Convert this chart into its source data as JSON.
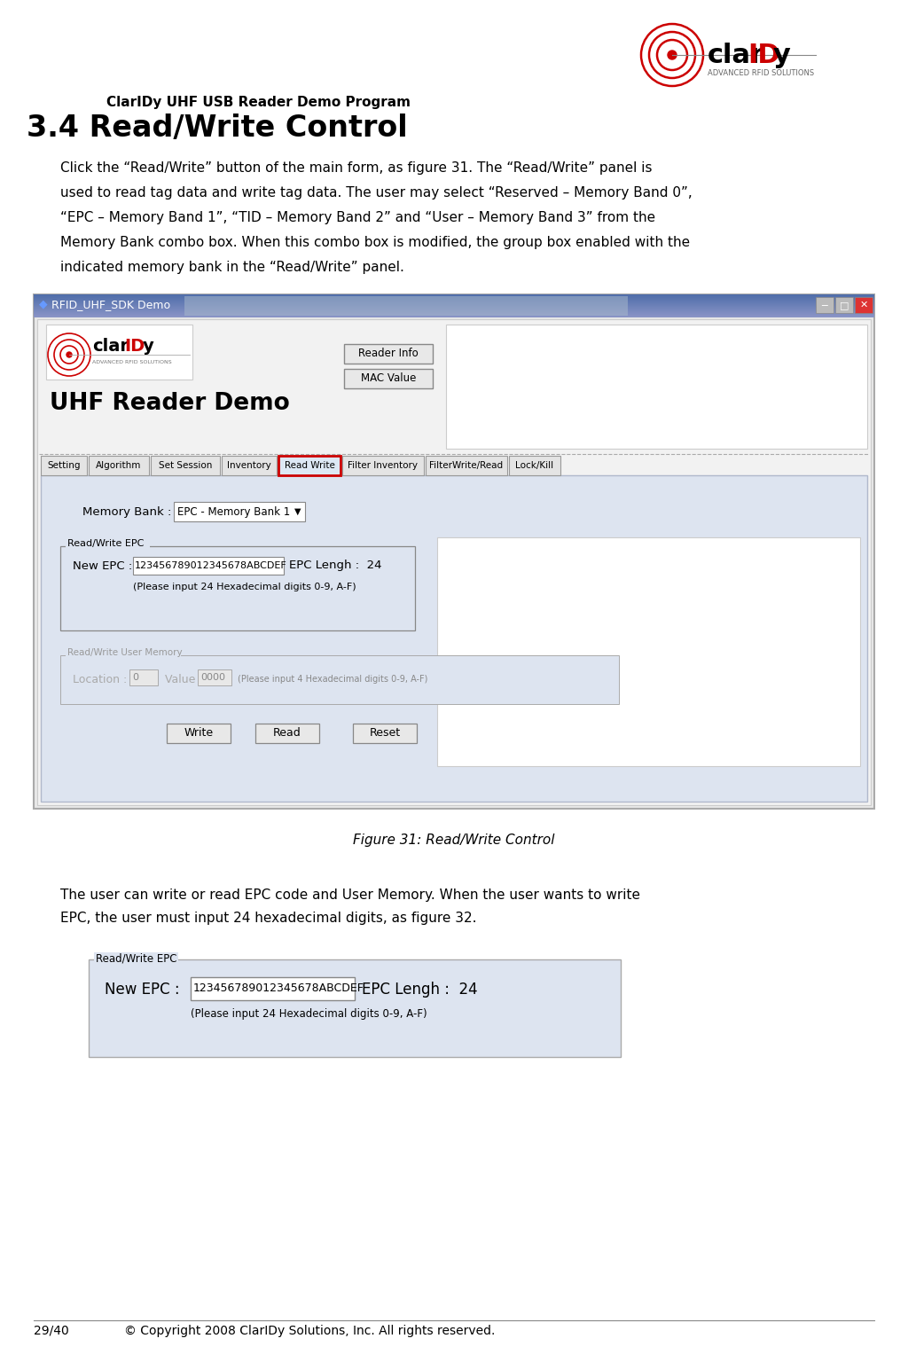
{
  "page_title": "ClarIDy UHF USB Reader Demo Program",
  "section_title": "3.4 Read/Write Control",
  "body1_lines": [
    "Click the “Read/Write” button of the main form, as figure 31. The “Read/Write” panel is",
    "used to read tag data and write tag data. The user may select “Reserved – Memory Band 0”,",
    "“EPC – Memory Band 1”, “TID – Memory Band 2” and “User – Memory Band 3” from the",
    "Memory Bank combo box. When this combo box is modified, the group box enabled with the",
    "indicated memory bank in the “Read/Write” panel."
  ],
  "figure_caption": "Figure 31: Read/Write Control",
  "body2_lines": [
    "The user can write or read EPC code and User Memory. When the user wants to write",
    "EPC, the user must input 24 hexadecimal digits, as figure 32."
  ],
  "footer_left": "29/40",
  "footer_right": "© Copyright 2008 ClarIDy Solutions, Inc. All rights reserved.",
  "bg_color": "#ffffff",
  "window_title": "RFID_UHF_SDK Demo",
  "tab_labels": [
    "Setting",
    "Algorithm",
    "Set Session",
    "Inventory",
    "Read Write",
    "Filter Inventory",
    "FilterWrite/Read",
    "Lock/Kill"
  ],
  "active_tab": "Read Write",
  "memory_bank_label": "Memory Bank :",
  "memory_bank_value": "EPC - Memory Bank 1",
  "epc_group_label": "Read/Write EPC",
  "new_epc_label": "New EPC :",
  "new_epc_value": "123456789012345678ABCDEF",
  "epc_length_label": "EPC Lengh :  24",
  "epc_hint": "(Please input 24 Hexadecimal digits 0-9, A-F)",
  "user_memory_group": "Read/Write User Memory",
  "location_label": "Location :",
  "location_value": "0",
  "value_label": "Value :",
  "value_value": "0000",
  "value_hint": "(Please input 4 Hexadecimal digits 0-9, A-F)",
  "btn_write": "Write",
  "btn_read": "Read",
  "btn_reset": "Reset",
  "uhf_title": "UHF Reader Demo",
  "btn_reader_info": "Reader Info",
  "btn_mac_value": "MAC Value",
  "fig32_group_label": "Read/Write EPC",
  "fig32_new_epc_label": "New EPC :",
  "fig32_epc_value": "123456789012345678ABCDEF",
  "fig32_epc_length": "EPC Lengh :  24",
  "fig32_hint": "(Please input 24 Hexadecimal digits 0-9, A-F)"
}
